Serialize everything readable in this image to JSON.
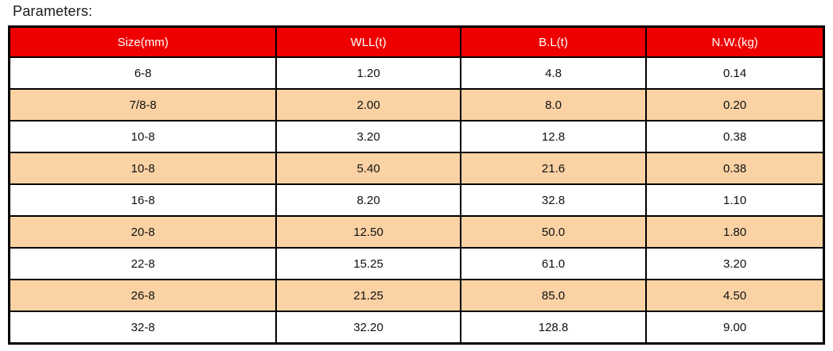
{
  "page": {
    "title": "Parameters:"
  },
  "colors": {
    "header_bg": "#ee0000",
    "header_text": "#ffffff",
    "alt_row_bg": "#fad2a4",
    "row_bg": "#ffffff",
    "border": "#000000"
  },
  "table": {
    "columns": [
      "Size(mm)",
      "WLL(t)",
      "B.L(t)",
      "N.W.(kg)"
    ],
    "rows": [
      [
        "6-8",
        "1.20",
        "4.8",
        "0.14"
      ],
      [
        "7/8-8",
        "2.00",
        "8.0",
        "0.20"
      ],
      [
        "10-8",
        "3.20",
        "12.8",
        "0.38"
      ],
      [
        "10-8",
        "5.40",
        "21.6",
        "0.38"
      ],
      [
        "16-8",
        "8.20",
        "32.8",
        "1.10"
      ],
      [
        "20-8",
        "12.50",
        "50.0",
        "1.80"
      ],
      [
        "22-8",
        "15.25",
        "61.0",
        "3.20"
      ],
      [
        "26-8",
        "21.25",
        "85.0",
        "4.50"
      ],
      [
        "32-8",
        "32.20",
        "128.8",
        "9.00"
      ]
    ]
  },
  "chart_data": {
    "type": "table",
    "title": "Parameters:",
    "columns": [
      "Size(mm)",
      "WLL(t)",
      "B.L(t)",
      "N.W.(kg)"
    ],
    "rows": [
      {
        "size_mm": "6-8",
        "wll_t": 1.2,
        "bl_t": 4.8,
        "nw_kg": 0.14
      },
      {
        "size_mm": "7/8-8",
        "wll_t": 2.0,
        "bl_t": 8.0,
        "nw_kg": 0.2
      },
      {
        "size_mm": "10-8",
        "wll_t": 3.2,
        "bl_t": 12.8,
        "nw_kg": 0.38
      },
      {
        "size_mm": "10-8",
        "wll_t": 5.4,
        "bl_t": 21.6,
        "nw_kg": 0.38
      },
      {
        "size_mm": "16-8",
        "wll_t": 8.2,
        "bl_t": 32.8,
        "nw_kg": 1.1
      },
      {
        "size_mm": "20-8",
        "wll_t": 12.5,
        "bl_t": 50.0,
        "nw_kg": 1.8
      },
      {
        "size_mm": "22-8",
        "wll_t": 15.25,
        "bl_t": 61.0,
        "nw_kg": 3.2
      },
      {
        "size_mm": "26-8",
        "wll_t": 21.25,
        "bl_t": 85.0,
        "nw_kg": 4.5
      },
      {
        "size_mm": "32-8",
        "wll_t": 32.2,
        "bl_t": 128.8,
        "nw_kg": 9.0
      }
    ],
    "layout": {
      "header_style": "red background, white text",
      "row_striping": "alternating white / peach starting with white",
      "grid": true
    }
  }
}
